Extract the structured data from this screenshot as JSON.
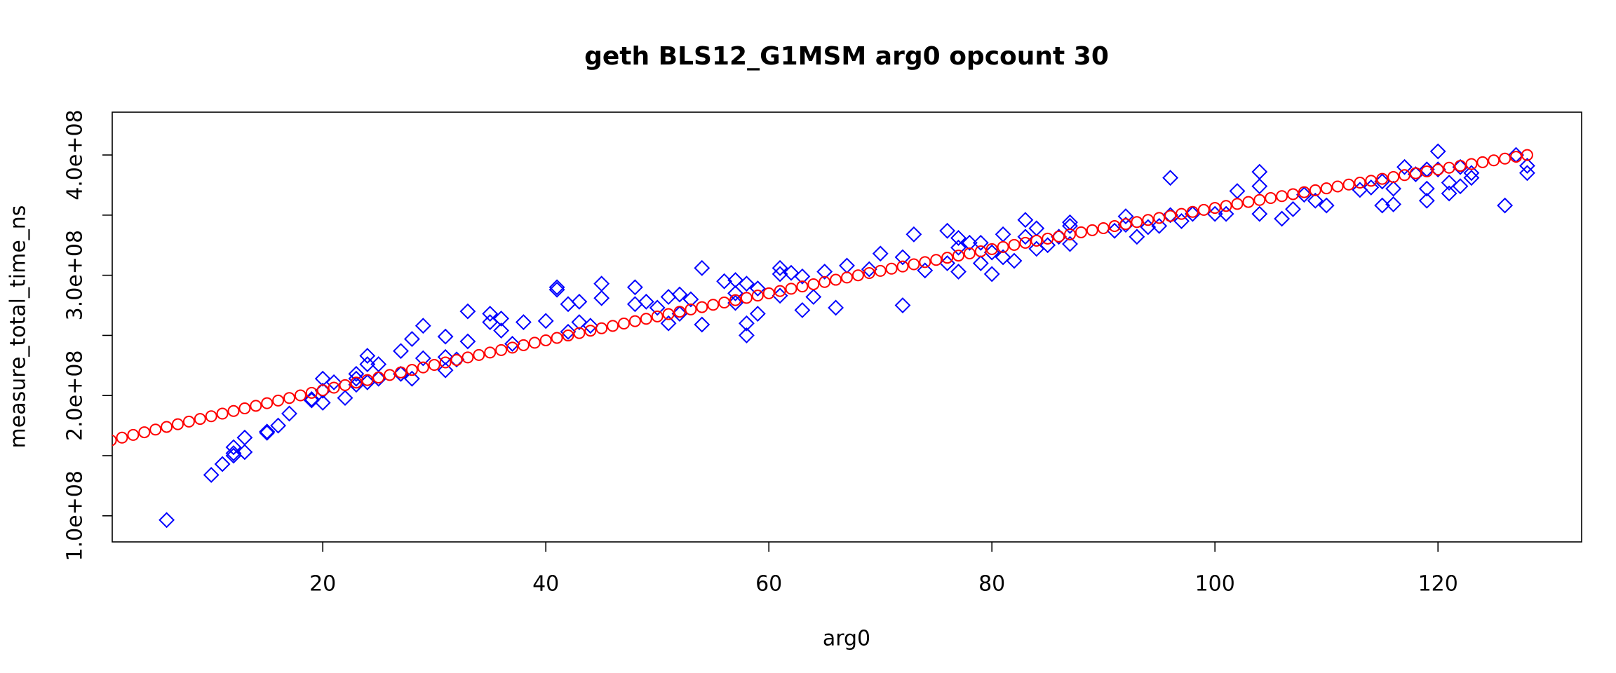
{
  "chart_data": {
    "type": "scatter",
    "title": "geth BLS12_G1MSM arg0 opcount 30",
    "x_label": "arg0",
    "y_label": "measure_total_time_ns",
    "xlim": [
      1.12,
      132.88
    ],
    "ylim": [
      78300000.0,
      435600000.0
    ],
    "xticks": [
      20,
      40,
      60,
      80,
      100,
      120
    ],
    "yticks": [
      {
        "value": 100000000,
        "label": "1.0e+08"
      },
      {
        "value": 200000000,
        "label": "2.0e+08"
      },
      {
        "value": 300000000,
        "label": "3.0e+08"
      },
      {
        "value": 400000000,
        "label": "4.0e+08"
      }
    ],
    "grid": false,
    "series": [
      {
        "color": "#0000ff",
        "marker": "diamond",
        "x": [
          6,
          10,
          11,
          12,
          12,
          12,
          13,
          13,
          15,
          15,
          16,
          17,
          19,
          19,
          20,
          20,
          20,
          21,
          22,
          23,
          23,
          23,
          24,
          24,
          24,
          25,
          25,
          27,
          27,
          28,
          28,
          29,
          29,
          31,
          31,
          31,
          32,
          33,
          33,
          35,
          35,
          36,
          36,
          37,
          38,
          40,
          41,
          41,
          42,
          42,
          43,
          43,
          44,
          45,
          45,
          48,
          48,
          49,
          50,
          51,
          51,
          52,
          52,
          53,
          54,
          54,
          56,
          57,
          57,
          57,
          58,
          58,
          58,
          59,
          59,
          61,
          61,
          61,
          62,
          63,
          63,
          64,
          65,
          66,
          67,
          69,
          70,
          72,
          72,
          73,
          74,
          76,
          76,
          77,
          77,
          77,
          78,
          79,
          79,
          80,
          80,
          81,
          81,
          82,
          83,
          83,
          84,
          84,
          85,
          86,
          87,
          87,
          87,
          91,
          92,
          92,
          93,
          94,
          95,
          96,
          96,
          97,
          98,
          100,
          101,
          102,
          104,
          104,
          104,
          106,
          107,
          108,
          109,
          110,
          113,
          114,
          115,
          115,
          116,
          116,
          117,
          118,
          119,
          119,
          119,
          120,
          120,
          121,
          121,
          122,
          122,
          123,
          123,
          126,
          127,
          128,
          128
        ],
        "values": [
          96500000.0,
          134000000.0,
          143000000.0,
          150000000.0,
          157000000.0,
          152000000.0,
          153000000.0,
          165000000.0,
          169000000.0,
          170000000.0,
          175000000.0,
          185000000.0,
          196000000.0,
          197000000.0,
          194000000.0,
          204000000.0,
          214000000.0,
          211000000.0,
          198000000.0,
          218000000.0,
          214000000.0,
          209000000.0,
          233000000.0,
          226000000.0,
          211000000.0,
          226000000.0,
          214000000.0,
          237000000.0,
          218000000.0,
          247000000.0,
          214000000.0,
          258000000.0,
          231000000.0,
          249000000.0,
          232000000.0,
          221000000.0,
          230000000.0,
          270000000.0,
          245000000.0,
          268000000.0,
          261000000.0,
          264000000.0,
          254000000.0,
          243000000.0,
          261000000.0,
          262000000.0,
          290000000.0,
          288000000.0,
          276000000.0,
          253000000.0,
          278000000.0,
          261000000.0,
          258000000.0,
          293000000.0,
          281000000.0,
          290000000.0,
          276000000.0,
          278000000.0,
          273000000.0,
          282000000.0,
          260000000.0,
          284000000.0,
          268000000.0,
          280000000.0,
          306000000.0,
          259000000.0,
          295000000.0,
          296000000.0,
          285000000.0,
          277000000.0,
          293000000.0,
          260000000.0,
          250000000.0,
          268000000.0,
          289000000.0,
          306000000.0,
          301000000.0,
          283000000.0,
          302000000.0,
          299000000.0,
          271000000.0,
          282000000.0,
          303000000.0,
          273000000.0,
          308000000.0,
          305000000.0,
          318000000.0,
          315000000.0,
          275000000.0,
          334000000.0,
          304000000.0,
          337000000.0,
          310000000.0,
          331000000.0,
          323000000.0,
          303000000.0,
          327000000.0,
          327000000.0,
          310000000.0,
          319000000.0,
          301000000.0,
          334000000.0,
          315000000.0,
          312000000.0,
          346000000.0,
          332000000.0,
          339000000.0,
          322000000.0,
          325000000.0,
          332000000.0,
          344000000.0,
          341000000.0,
          326000000.0,
          337000000.0,
          349000000.0,
          342000000.0,
          332000000.0,
          340000000.0,
          341000000.0,
          381000000.0,
          350000000.0,
          345000000.0,
          351000000.0,
          351000000.0,
          351000000.0,
          370000000.0,
          386000000.0,
          374000000.0,
          351000000.0,
          347000000.0,
          355000000.0,
          367000000.0,
          362000000.0,
          358000000.0,
          371000000.0,
          373000000.0,
          378000000.0,
          358000000.0,
          372000000.0,
          359000000.0,
          390000000.0,
          384000000.0,
          388000000.0,
          372000000.0,
          362000000.0,
          403000000.0,
          388000000.0,
          377000000.0,
          368000000.0,
          390000000.0,
          374000000.0,
          385000000.0,
          381000000.0,
          358000000.0,
          400000000.0,
          391000000.0,
          385000000.0
        ]
      },
      {
        "color": "#ff0000",
        "marker": "circle",
        "x": [
          1,
          2,
          3,
          4,
          5,
          6,
          7,
          8,
          9,
          10,
          11,
          12,
          13,
          14,
          15,
          16,
          17,
          18,
          19,
          20,
          21,
          22,
          23,
          24,
          25,
          26,
          27,
          28,
          29,
          30,
          31,
          32,
          33,
          34,
          35,
          36,
          37,
          38,
          39,
          40,
          41,
          42,
          43,
          44,
          45,
          46,
          47,
          48,
          49,
          50,
          51,
          52,
          53,
          54,
          55,
          56,
          57,
          58,
          59,
          60,
          61,
          62,
          63,
          64,
          65,
          66,
          67,
          68,
          69,
          70,
          71,
          72,
          73,
          74,
          75,
          76,
          77,
          78,
          79,
          80,
          81,
          82,
          83,
          84,
          85,
          86,
          87,
          88,
          89,
          90,
          91,
          92,
          93,
          94,
          95,
          96,
          97,
          98,
          99,
          100,
          101,
          102,
          103,
          104,
          105,
          106,
          107,
          108,
          109,
          110,
          111,
          112,
          113,
          114,
          115,
          116,
          117,
          118,
          119,
          120,
          121,
          122,
          123,
          124,
          125,
          126,
          127,
          128
        ],
        "values": [
          162750000.0,
          165000000.0,
          167240000.0,
          169470000.0,
          171700000.0,
          173920000.0,
          176140000.0,
          178350000.0,
          180550000.0,
          182750000.0,
          184940000.0,
          187130000.0,
          189310000.0,
          191480000.0,
          193650000.0,
          195810000.0,
          197970000.0,
          200120000.0,
          202260000.0,
          204400000.0,
          206530000.0,
          208660000.0,
          210780000.0,
          212890000.0,
          215000000.0,
          217100000.0,
          219200000.0,
          221290000.0,
          223370000.0,
          225450000.0,
          227520000.0,
          229590000.0,
          231650000.0,
          233700000.0,
          235750000.0,
          237790000.0,
          239830000.0,
          241860000.0,
          243880000.0,
          245900000.0,
          247910000.0,
          249920000.0,
          251920000.0,
          253910000.0,
          255900000.0,
          257880000.0,
          259860000.0,
          261830000.0,
          263790000.0,
          265750000.0,
          267700000.0,
          269650000.0,
          271590000.0,
          273520000.0,
          275450000.0,
          277370000.0,
          279290000.0,
          281200000.0,
          283100000.0,
          285000000.0,
          286890000.0,
          288780000.0,
          290660000.0,
          292530000.0,
          294400000.0,
          296260000.0,
          298120000.0,
          299970000.0,
          301810000.0,
          303650000.0,
          305480000.0,
          307310000.0,
          309130000.0,
          310940000.0,
          312750000.0,
          314550000.0,
          316350000.0,
          318140000.0,
          319920000.0,
          321700000.0,
          323470000.0,
          325240000.0,
          327000000.0,
          328750000.0,
          330500000.0,
          332240000.0,
          333980000.0,
          335710000.0,
          337430000.0,
          339150000.0,
          340860000.0,
          342570000.0,
          344270000.0,
          345960000.0,
          347650000.0,
          349330000.0,
          351010000.0,
          352680000.0,
          354340000.0,
          356000000.0,
          357650000.0,
          359300000.0,
          360940000.0,
          362570000.0,
          364200000.0,
          365820000.0,
          367440000.0,
          369050000.0,
          370650000.0,
          372250000.0,
          373840000.0,
          375430000.0,
          377010000.0,
          378580000.0,
          380150000.0,
          381710000.0,
          383270000.0,
          384820000.0,
          386360000.0,
          387900000.0,
          389430000.0,
          390960000.0,
          392480000.0,
          393990000.0,
          395500000.0,
          397000000.0,
          398500000.0,
          399990000.0
        ]
      }
    ]
  }
}
